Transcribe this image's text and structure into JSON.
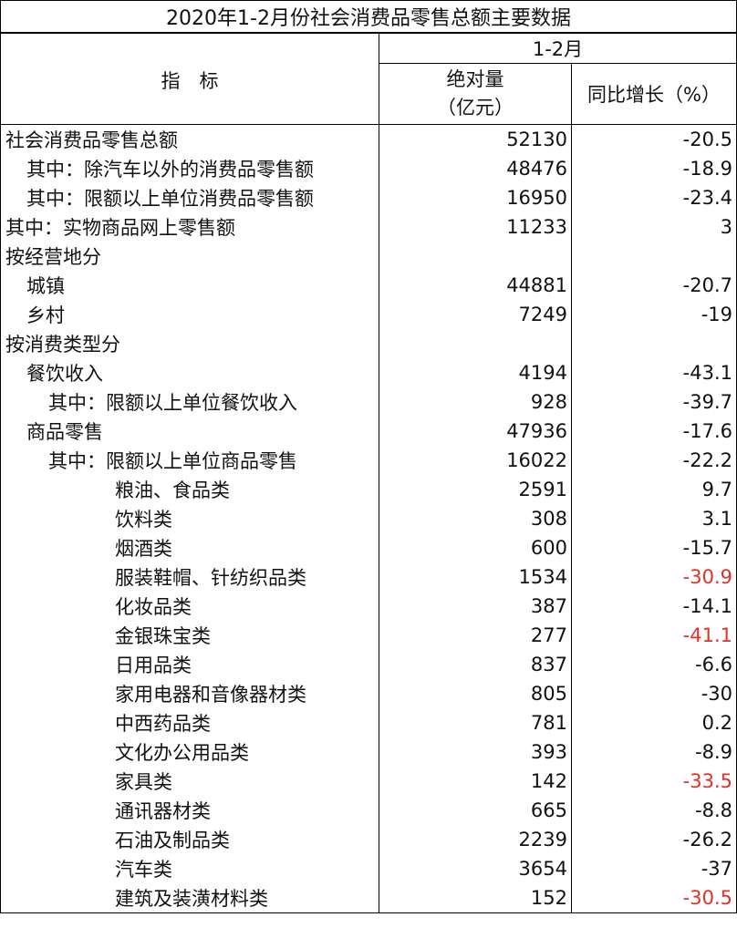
{
  "title": "2020年1-2月份社会消费品零售总额主要数据",
  "header": {
    "indicator": "指　标",
    "period": "1-2月",
    "absolute": "绝对量",
    "absolute_unit": "（亿元）",
    "yoy": "同比增长（%）"
  },
  "colors": {
    "highlight": "#e0302b",
    "text": "#111111"
  },
  "rows": [
    {
      "name": "社会消费品零售总额",
      "level": 0,
      "value": "52130",
      "growth": "-20.5",
      "highlight": false
    },
    {
      "name": "其中：除汽车以外的消费品零售额",
      "level": 1,
      "value": "48476",
      "growth": "-18.9",
      "highlight": false
    },
    {
      "name": "其中：限额以上单位消费品零售额",
      "level": 1,
      "value": "16950",
      "growth": "-23.4",
      "highlight": false
    },
    {
      "name": "其中：实物商品网上零售额",
      "level": 0,
      "value": "11233",
      "growth": "3",
      "highlight": false
    },
    {
      "name": "按经营地分",
      "level": 0,
      "value": "",
      "growth": "",
      "highlight": false
    },
    {
      "name": "城镇",
      "level": 1,
      "value": "44881",
      "growth": "-20.7",
      "highlight": false
    },
    {
      "name": "乡村",
      "level": 1,
      "value": "7249",
      "growth": "-19",
      "highlight": false
    },
    {
      "name": "按消费类型分",
      "level": 0,
      "value": "",
      "growth": "",
      "highlight": false
    },
    {
      "name": "餐饮收入",
      "level": 1,
      "value": "4194",
      "growth": "-43.1",
      "highlight": false
    },
    {
      "name": "其中：限额以上单位餐饮收入",
      "level": 2,
      "value": "928",
      "growth": "-39.7",
      "highlight": false
    },
    {
      "name": "商品零售",
      "level": 1,
      "value": "47936",
      "growth": "-17.6",
      "highlight": false
    },
    {
      "name": "其中：限额以上单位商品零售",
      "level": 2,
      "value": "16022",
      "growth": "-22.2",
      "highlight": false
    },
    {
      "name": "粮油、食品类",
      "level": 3,
      "value": "2591",
      "growth": "9.7",
      "highlight": false
    },
    {
      "name": "饮料类",
      "level": 3,
      "value": "308",
      "growth": "3.1",
      "highlight": false
    },
    {
      "name": "烟酒类",
      "level": 3,
      "value": "600",
      "growth": "-15.7",
      "highlight": false
    },
    {
      "name": "服装鞋帽、针纺织品类",
      "level": 3,
      "value": "1534",
      "growth": "-30.9",
      "highlight": true
    },
    {
      "name": "化妆品类",
      "level": 3,
      "value": "387",
      "growth": "-14.1",
      "highlight": false
    },
    {
      "name": "金银珠宝类",
      "level": 3,
      "value": "277",
      "growth": "-41.1",
      "highlight": true
    },
    {
      "name": "日用品类",
      "level": 3,
      "value": "837",
      "growth": "-6.6",
      "highlight": false
    },
    {
      "name": "家用电器和音像器材类",
      "level": 3,
      "value": "805",
      "growth": "-30",
      "highlight": false
    },
    {
      "name": "中西药品类",
      "level": 3,
      "value": "781",
      "growth": "0.2",
      "highlight": false
    },
    {
      "name": "文化办公用品类",
      "level": 3,
      "value": "393",
      "growth": "-8.9",
      "highlight": false
    },
    {
      "name": "家具类",
      "level": 3,
      "value": "142",
      "growth": "-33.5",
      "highlight": true
    },
    {
      "name": "通讯器材类",
      "level": 3,
      "value": "665",
      "growth": "-8.8",
      "highlight": false
    },
    {
      "name": "石油及制品类",
      "level": 3,
      "value": "2239",
      "growth": "-26.2",
      "highlight": false
    },
    {
      "name": "汽车类",
      "level": 3,
      "value": "3654",
      "growth": "-37",
      "highlight": false
    },
    {
      "name": "建筑及装潢材料类",
      "level": 3,
      "value": "152",
      "growth": "-30.5",
      "highlight": true
    }
  ]
}
